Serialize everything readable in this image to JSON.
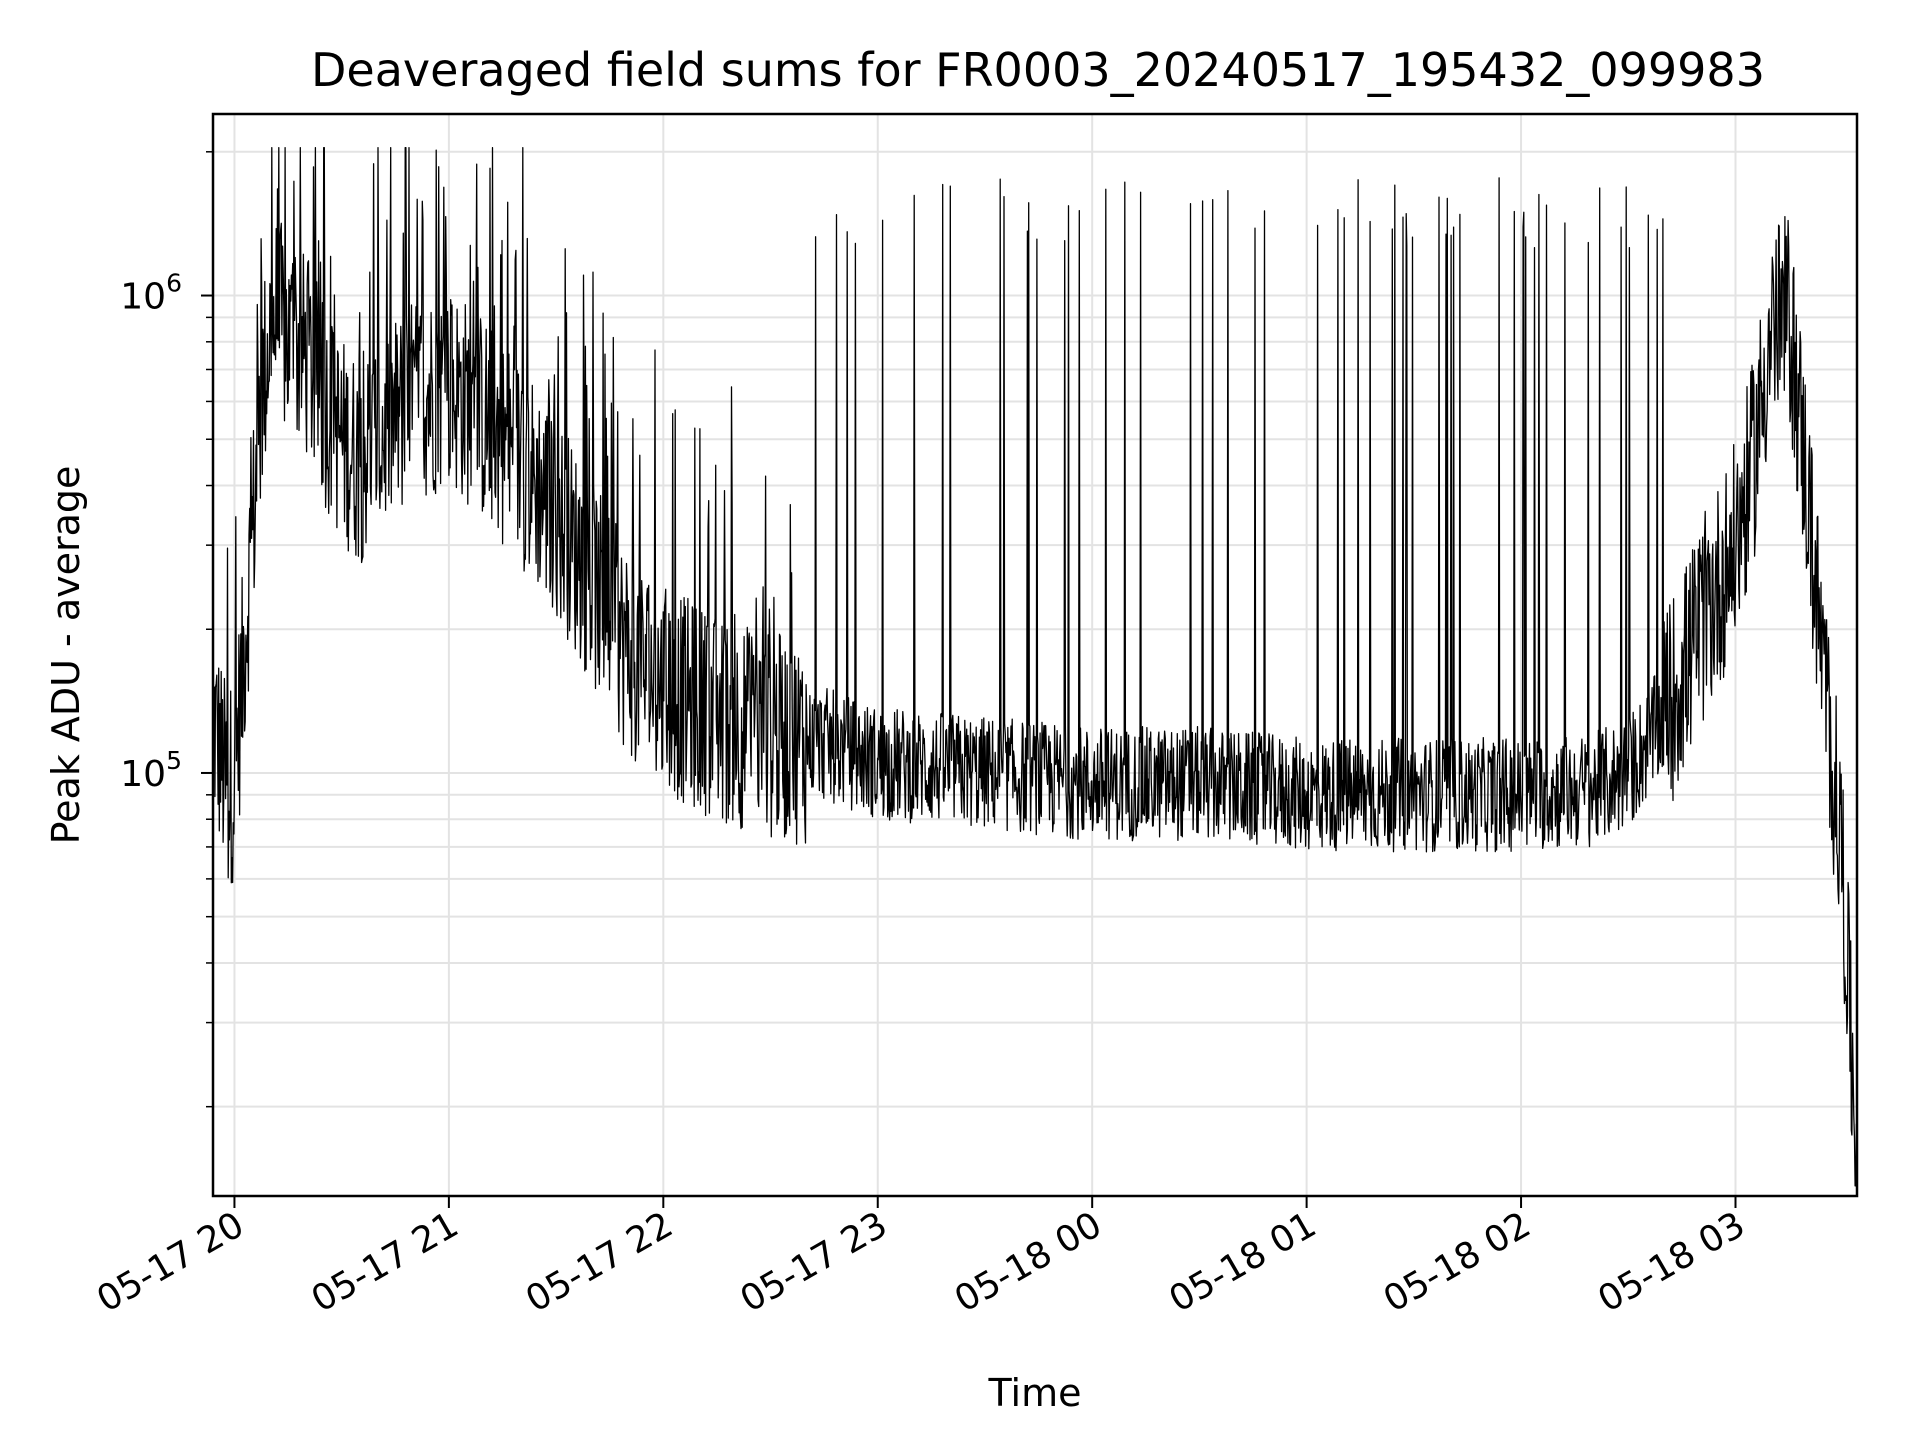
{
  "chart_data": {
    "type": "line",
    "title": "Deaveraged field sums for FR0003_20240517_195432_099983",
    "xlabel": "Time",
    "ylabel": "Peak ADU - average",
    "x_range": [
      "2024-05-17 19:54",
      "2024-05-18 03:34"
    ],
    "y_scale": "log",
    "ylim": [
      13000,
      2400000
    ],
    "grid": true,
    "line_color": "#000000",
    "x_ticks": [
      {
        "label": "05-17 20",
        "t": "2024-05-17 20:00"
      },
      {
        "label": "05-17 21",
        "t": "2024-05-17 21:00"
      },
      {
        "label": "05-17 22",
        "t": "2024-05-17 22:00"
      },
      {
        "label": "05-17 23",
        "t": "2024-05-17 23:00"
      },
      {
        "label": "05-18 00",
        "t": "2024-05-18 00:00"
      },
      {
        "label": "05-18 01",
        "t": "2024-05-18 01:00"
      },
      {
        "label": "05-18 02",
        "t": "2024-05-18 02:00"
      },
      {
        "label": "05-18 03",
        "t": "2024-05-18 03:00"
      }
    ],
    "y_ticks": [
      {
        "base": "10",
        "exp": "5",
        "value": 100000
      },
      {
        "base": "10",
        "exp": "6",
        "value": 1000000
      }
    ],
    "series": [
      {
        "x": [
          "2024-05-17 19:54",
          "2024-05-17 19:56",
          "2024-05-17 19:58",
          "2024-05-17 20:00",
          "2024-05-17 20:02",
          "2024-05-17 20:04",
          "2024-05-17 20:06",
          "2024-05-17 20:08",
          "2024-05-17 20:10",
          "2024-05-17 20:12",
          "2024-05-17 20:15",
          "2024-05-17 20:20",
          "2024-05-17 20:25",
          "2024-05-17 20:30",
          "2024-05-17 20:35",
          "2024-05-17 20:40",
          "2024-05-17 20:45",
          "2024-05-17 20:50",
          "2024-05-17 21:00",
          "2024-05-17 21:10",
          "2024-05-17 21:20",
          "2024-05-17 21:30",
          "2024-05-17 21:40",
          "2024-05-17 21:50",
          "2024-05-17 22:00",
          "2024-05-17 22:15",
          "2024-05-17 22:30",
          "2024-05-17 22:45",
          "2024-05-17 23:00",
          "2024-05-17 23:30",
          "2024-05-18 00:00",
          "2024-05-18 00:30",
          "2024-05-18 01:00",
          "2024-05-18 01:30",
          "2024-05-18 02:00",
          "2024-05-18 02:20",
          "2024-05-18 02:30",
          "2024-05-18 02:40",
          "2024-05-18 02:50",
          "2024-05-18 03:00",
          "2024-05-18 03:05",
          "2024-05-18 03:10",
          "2024-05-18 03:15",
          "2024-05-18 03:20",
          "2024-05-18 03:25",
          "2024-05-18 03:30",
          "2024-05-18 03:32",
          "2024-05-18 03:34"
        ],
        "y": [
          130000,
          110000,
          90000,
          100000,
          150000,
          250000,
          400000,
          650000,
          850000,
          900000,
          800000,
          750000,
          600000,
          500000,
          450000,
          500000,
          550000,
          600000,
          650000,
          550000,
          450000,
          350000,
          250000,
          180000,
          150000,
          130000,
          120000,
          115000,
          105000,
          100000,
          95000,
          95000,
          90000,
          90000,
          90000,
          92000,
          100000,
          130000,
          200000,
          300000,
          450000,
          850000,
          900000,
          400000,
          150000,
          65000,
          30000,
          15000
        ]
      }
    ]
  }
}
